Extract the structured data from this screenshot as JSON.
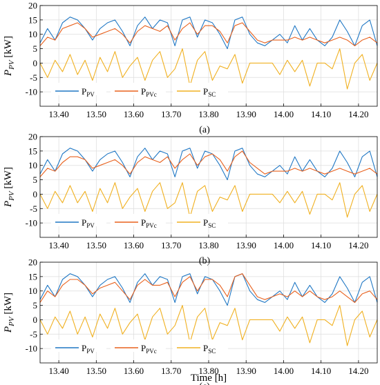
{
  "figure": {
    "xlabel": "Time [h]",
    "series_colors": {
      "P_PV": "#1f77c4",
      "P_PVc": "#e8601c",
      "P_SC": "#f0b020"
    }
  },
  "chart_data": [
    {
      "type": "line",
      "panel_label": "(a)",
      "ylabel": "P_PV [kW]",
      "ylim": [
        -15,
        20
      ],
      "yticks": [
        -10,
        -5,
        0,
        5,
        10,
        15,
        20
      ],
      "xlim": [
        13.35,
        14.25
      ],
      "xticks": [
        "13.40",
        "13.50",
        "13.60",
        "13.70",
        "13.80",
        "13.90",
        "14.00",
        "14.10",
        "14.20"
      ],
      "grid": true,
      "legend_position": "bottom-left",
      "series": [
        {
          "name": "P_PV",
          "x": [
            13.35,
            13.37,
            13.39,
            13.41,
            13.43,
            13.45,
            13.47,
            13.49,
            13.51,
            13.53,
            13.55,
            13.57,
            13.59,
            13.61,
            13.63,
            13.65,
            13.67,
            13.69,
            13.71,
            13.73,
            13.75,
            13.77,
            13.79,
            13.81,
            13.83,
            13.85,
            13.87,
            13.89,
            13.91,
            13.93,
            13.95,
            13.97,
            13.99,
            14.01,
            14.03,
            14.05,
            14.07,
            14.09,
            14.11,
            14.13,
            14.15,
            14.17,
            14.19,
            14.21,
            14.23,
            14.25
          ],
          "values": [
            7,
            12,
            8,
            14,
            16,
            15,
            12,
            8,
            12,
            14,
            15,
            11,
            6,
            13,
            16,
            12,
            15,
            14,
            6,
            15,
            16,
            9,
            15,
            14,
            10,
            5,
            15,
            16,
            10,
            7,
            6,
            8,
            10,
            7,
            13,
            8,
            12,
            8,
            6,
            9,
            15,
            11,
            6,
            13,
            15,
            6
          ]
        },
        {
          "name": "P_PVc",
          "x": [
            13.35,
            13.37,
            13.39,
            13.41,
            13.43,
            13.45,
            13.47,
            13.49,
            13.51,
            13.53,
            13.55,
            13.57,
            13.59,
            13.61,
            13.63,
            13.65,
            13.67,
            13.69,
            13.71,
            13.73,
            13.75,
            13.77,
            13.79,
            13.81,
            13.83,
            13.85,
            13.87,
            13.89,
            13.91,
            13.93,
            13.95,
            13.97,
            13.99,
            14.01,
            14.03,
            14.05,
            14.07,
            14.09,
            14.11,
            14.13,
            14.15,
            14.17,
            14.19,
            14.21,
            14.23,
            14.25
          ],
          "values": [
            6,
            9,
            8,
            12,
            13,
            14,
            12,
            9,
            10,
            11,
            12,
            10,
            7,
            11,
            13,
            12,
            11,
            13,
            8,
            12,
            14,
            10,
            13,
            13,
            11,
            7,
            13,
            14,
            11,
            8,
            7,
            8,
            8,
            8,
            9,
            8,
            9,
            8,
            7,
            8,
            9,
            8,
            6,
            8,
            9,
            7
          ]
        },
        {
          "name": "P_SC",
          "x": [
            13.35,
            13.37,
            13.39,
            13.41,
            13.43,
            13.45,
            13.47,
            13.49,
            13.51,
            13.53,
            13.55,
            13.57,
            13.59,
            13.61,
            13.63,
            13.65,
            13.67,
            13.69,
            13.71,
            13.73,
            13.75,
            13.77,
            13.79,
            13.81,
            13.83,
            13.85,
            13.87,
            13.89,
            13.91,
            13.93,
            13.95,
            13.97,
            13.99,
            14.01,
            14.03,
            14.05,
            14.07,
            14.09,
            14.11,
            14.13,
            14.15,
            14.17,
            14.19,
            14.21,
            14.23,
            14.25
          ],
          "values": [
            0,
            -5,
            1,
            -3,
            3,
            -4,
            1,
            -6,
            2,
            -3,
            4,
            -5,
            -1,
            2,
            -6,
            1,
            4,
            -5,
            -2,
            5,
            -8,
            1,
            4,
            -6,
            -1,
            -2,
            3,
            -7,
            0,
            0,
            0,
            0,
            -4,
            1,
            -3,
            1,
            -8,
            0,
            0,
            -2,
            5,
            -9,
            0,
            3,
            -6,
            0
          ]
        }
      ],
      "legend": [
        {
          "base": "P",
          "sub": "PV"
        },
        {
          "base": "P",
          "sub": "PVc"
        },
        {
          "base": "P",
          "sub": "SC"
        }
      ]
    },
    {
      "type": "line",
      "panel_label": "(b)",
      "ylabel": "P_PV [kW]",
      "ylim": [
        -15,
        20
      ],
      "yticks": [
        -10,
        -5,
        0,
        5,
        10,
        15,
        20
      ],
      "xlim": [
        13.35,
        14.25
      ],
      "xticks": [
        "13.40",
        "13.50",
        "13.60",
        "13.70",
        "13.80",
        "13.90",
        "14.00",
        "14.10",
        "14.20"
      ],
      "grid": true,
      "legend_position": "bottom-left",
      "series": [
        {
          "name": "P_PV",
          "x": [
            13.35,
            13.37,
            13.39,
            13.41,
            13.43,
            13.45,
            13.47,
            13.49,
            13.51,
            13.53,
            13.55,
            13.57,
            13.59,
            13.61,
            13.63,
            13.65,
            13.67,
            13.69,
            13.71,
            13.73,
            13.75,
            13.77,
            13.79,
            13.81,
            13.83,
            13.85,
            13.87,
            13.89,
            13.91,
            13.93,
            13.95,
            13.97,
            13.99,
            14.01,
            14.03,
            14.05,
            14.07,
            14.09,
            14.11,
            14.13,
            14.15,
            14.17,
            14.19,
            14.21,
            14.23,
            14.25
          ],
          "values": [
            7,
            12,
            8,
            14,
            16,
            15,
            12,
            8,
            12,
            14,
            15,
            11,
            6,
            13,
            16,
            12,
            15,
            14,
            6,
            15,
            16,
            9,
            15,
            14,
            10,
            5,
            15,
            16,
            10,
            7,
            6,
            8,
            10,
            7,
            13,
            8,
            12,
            8,
            6,
            9,
            15,
            11,
            6,
            13,
            15,
            6
          ]
        },
        {
          "name": "P_PVc",
          "x": [
            13.35,
            13.37,
            13.39,
            13.41,
            13.43,
            13.45,
            13.47,
            13.49,
            13.51,
            13.53,
            13.55,
            13.57,
            13.59,
            13.61,
            13.63,
            13.65,
            13.67,
            13.69,
            13.71,
            13.73,
            13.75,
            13.77,
            13.79,
            13.81,
            13.83,
            13.85,
            13.87,
            13.89,
            13.91,
            13.93,
            13.95,
            13.97,
            13.99,
            14.01,
            14.03,
            14.05,
            14.07,
            14.09,
            14.11,
            14.13,
            14.15,
            14.17,
            14.19,
            14.21,
            14.23,
            14.25
          ],
          "values": [
            6,
            9,
            8,
            11,
            13,
            13,
            12,
            9,
            10,
            11,
            12,
            10,
            7,
            11,
            13,
            12,
            11,
            13,
            9,
            12,
            14,
            10,
            13,
            14,
            12,
            8,
            13,
            15,
            11,
            9,
            7,
            8,
            8,
            8,
            9,
            8,
            9,
            8,
            7,
            8,
            9,
            8,
            7,
            8,
            9,
            7
          ]
        },
        {
          "name": "P_SC",
          "x": [
            13.35,
            13.37,
            13.39,
            13.41,
            13.43,
            13.45,
            13.47,
            13.49,
            13.51,
            13.53,
            13.55,
            13.57,
            13.59,
            13.61,
            13.63,
            13.65,
            13.67,
            13.69,
            13.71,
            13.73,
            13.75,
            13.77,
            13.79,
            13.81,
            13.83,
            13.85,
            13.87,
            13.89,
            13.91,
            13.93,
            13.95,
            13.97,
            13.99,
            14.01,
            14.03,
            14.05,
            14.07,
            14.09,
            14.11,
            14.13,
            14.15,
            14.17,
            14.19,
            14.21,
            14.23,
            14.25
          ],
          "values": [
            0,
            -5,
            1,
            -3,
            3,
            -3,
            1,
            -6,
            2,
            -3,
            4,
            -5,
            -1,
            2,
            -6,
            1,
            4,
            -5,
            -3,
            4,
            -8,
            1,
            3,
            -6,
            -1,
            -2,
            3,
            -6,
            0,
            0,
            0,
            0,
            -3,
            1,
            -3,
            1,
            -7,
            0,
            0,
            -2,
            4,
            -8,
            0,
            3,
            -6,
            0
          ]
        }
      ],
      "legend": [
        {
          "base": "P",
          "sub": "PV"
        },
        {
          "base": "P",
          "sub": "PVc"
        },
        {
          "base": "P",
          "sub": "SC"
        }
      ]
    },
    {
      "type": "line",
      "panel_label": "(c)",
      "ylabel": "P_PV [kW]",
      "ylim": [
        -15,
        20
      ],
      "yticks": [
        -10,
        -5,
        0,
        5,
        10,
        15,
        20
      ],
      "xlim": [
        13.35,
        14.25
      ],
      "xticks": [
        "13.40",
        "13.50",
        "13.60",
        "13.70",
        "13.80",
        "13.90",
        "14.00",
        "14.10",
        "14.20"
      ],
      "grid": true,
      "legend_position": "bottom-left",
      "series": [
        {
          "name": "P_PV",
          "x": [
            13.35,
            13.37,
            13.39,
            13.41,
            13.43,
            13.45,
            13.47,
            13.49,
            13.51,
            13.53,
            13.55,
            13.57,
            13.59,
            13.61,
            13.63,
            13.65,
            13.67,
            13.69,
            13.71,
            13.73,
            13.75,
            13.77,
            13.79,
            13.81,
            13.83,
            13.85,
            13.87,
            13.89,
            13.91,
            13.93,
            13.95,
            13.97,
            13.99,
            14.01,
            14.03,
            14.05,
            14.07,
            14.09,
            14.11,
            14.13,
            14.15,
            14.17,
            14.19,
            14.21,
            14.23,
            14.25
          ],
          "values": [
            7,
            12,
            8,
            14,
            16,
            15,
            12,
            8,
            12,
            14,
            15,
            11,
            6,
            13,
            16,
            12,
            15,
            14,
            6,
            15,
            16,
            9,
            15,
            14,
            10,
            5,
            15,
            16,
            10,
            7,
            6,
            8,
            10,
            7,
            13,
            8,
            12,
            8,
            6,
            9,
            15,
            11,
            6,
            13,
            15,
            6
          ]
        },
        {
          "name": "P_PVc",
          "x": [
            13.35,
            13.37,
            13.39,
            13.41,
            13.43,
            13.45,
            13.47,
            13.49,
            13.51,
            13.53,
            13.55,
            13.57,
            13.59,
            13.61,
            13.63,
            13.65,
            13.67,
            13.69,
            13.71,
            13.73,
            13.75,
            13.77,
            13.79,
            13.81,
            13.83,
            13.85,
            13.87,
            13.89,
            13.91,
            13.93,
            13.95,
            13.97,
            13.99,
            14.01,
            14.03,
            14.05,
            14.07,
            14.09,
            14.11,
            14.13,
            14.15,
            14.17,
            14.19,
            14.21,
            14.23,
            14.25
          ],
          "values": [
            6,
            10,
            8,
            12,
            14,
            14,
            12,
            9,
            11,
            12,
            13,
            10,
            7,
            12,
            14,
            12,
            12,
            13,
            8,
            13,
            15,
            10,
            14,
            14,
            12,
            8,
            15,
            16,
            12,
            8,
            7,
            8,
            9,
            8,
            10,
            8,
            10,
            8,
            7,
            8,
            10,
            8,
            6,
            9,
            10,
            7
          ]
        },
        {
          "name": "P_SC",
          "x": [
            13.35,
            13.37,
            13.39,
            13.41,
            13.43,
            13.45,
            13.47,
            13.49,
            13.51,
            13.53,
            13.55,
            13.57,
            13.59,
            13.61,
            13.63,
            13.65,
            13.67,
            13.69,
            13.71,
            13.73,
            13.75,
            13.77,
            13.79,
            13.81,
            13.83,
            13.85,
            13.87,
            13.89,
            13.91,
            13.93,
            13.95,
            13.97,
            13.99,
            14.01,
            14.03,
            14.05,
            14.07,
            14.09,
            14.11,
            14.13,
            14.15,
            14.17,
            14.19,
            14.21,
            14.23,
            14.25
          ],
          "values": [
            0,
            -5,
            1,
            -3,
            3,
            -5,
            1,
            -6,
            2,
            -3,
            4,
            -5,
            -1,
            2,
            -7,
            1,
            4,
            -5,
            -2,
            5,
            -8,
            1,
            4,
            -7,
            -1,
            -2,
            4,
            -7,
            0,
            0,
            0,
            0,
            -4,
            1,
            -3,
            1,
            -8,
            0,
            0,
            -2,
            5,
            -9,
            0,
            3,
            -6,
            0
          ]
        }
      ],
      "legend": [
        {
          "base": "P",
          "sub": "PV"
        },
        {
          "base": "P",
          "sub": "PVc"
        },
        {
          "base": "P",
          "sub": "SC"
        }
      ]
    }
  ]
}
